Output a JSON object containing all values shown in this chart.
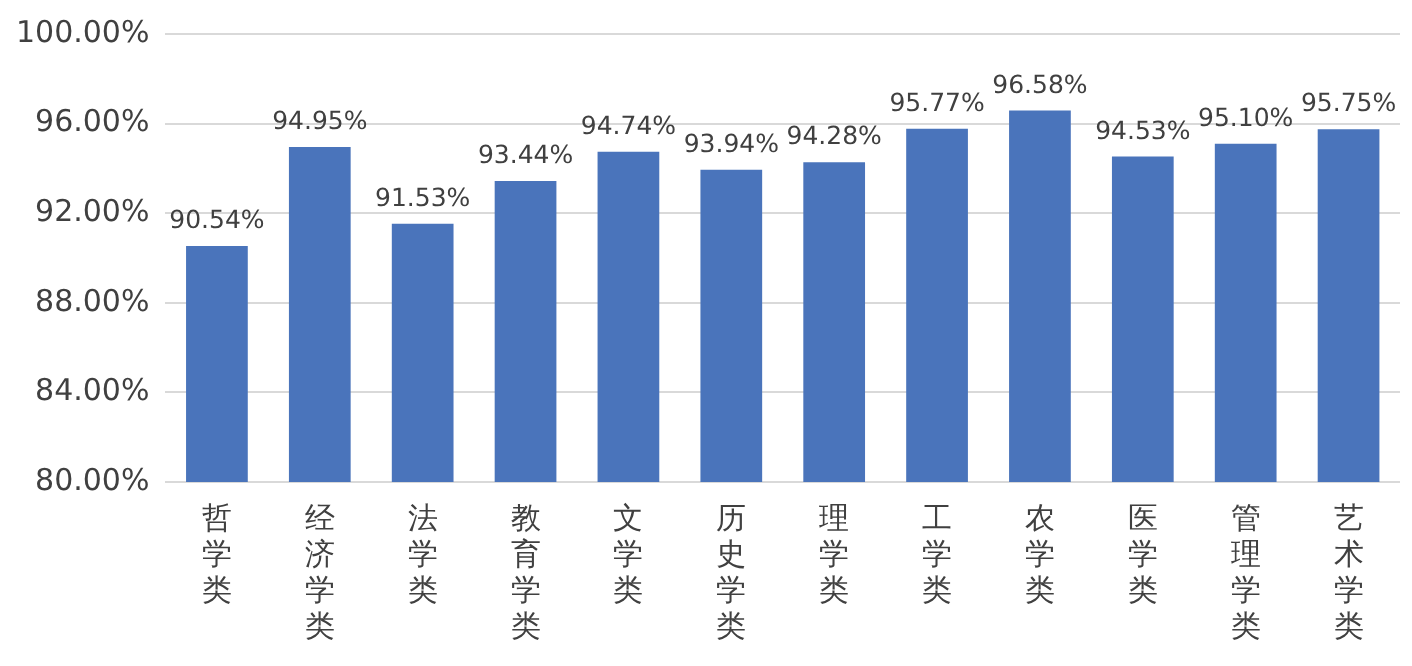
{
  "chart_data": {
    "type": "bar",
    "categories": [
      "哲学类",
      "经济学类",
      "法学类",
      "教育学类",
      "文学类",
      "历史学类",
      "理学类",
      "工学类",
      "农学类",
      "医学类",
      "管理学类",
      "艺术学类"
    ],
    "values": [
      90.54,
      94.95,
      91.53,
      93.44,
      94.74,
      93.94,
      94.28,
      95.77,
      96.58,
      94.53,
      95.1,
      95.75
    ],
    "value_labels": [
      "90.54%",
      "94.95%",
      "91.53%",
      "93.44%",
      "94.74%",
      "93.94%",
      "94.28%",
      "95.77%",
      "96.58%",
      "94.53%",
      "95.10%",
      "95.75%"
    ],
    "color": "#4a74bb",
    "ylim": [
      80,
      100
    ],
    "yticks": [
      {
        "value": 80,
        "label": "80.00%"
      },
      {
        "value": 84,
        "label": "84.00%"
      },
      {
        "value": 88,
        "label": "88.00%"
      },
      {
        "value": 92,
        "label": "92.00%"
      },
      {
        "value": 96,
        "label": "96.00%"
      },
      {
        "value": 100,
        "label": "100.00%"
      }
    ],
    "grid": "y"
  }
}
